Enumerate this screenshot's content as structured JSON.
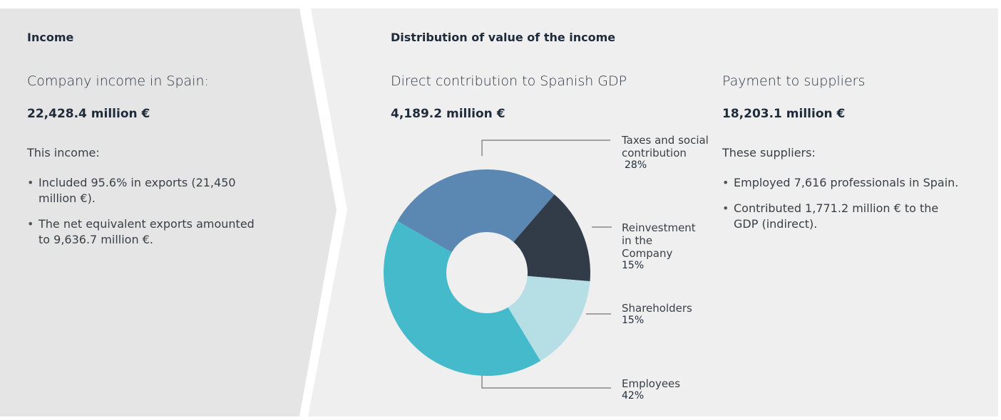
{
  "income": {
    "title": "Income",
    "subtitle": "Company income in Spain:",
    "amount": "22,428.4 million €",
    "intro": "This income:",
    "bullets": [
      "Included 95.6% in exports (21,450 million €).",
      "The net equivalent exports amounted to 9,636.7 million €."
    ]
  },
  "distribution": {
    "title": "Distribution of value of the income"
  },
  "gdp": {
    "subtitle": "Direct contribution to Spanish GDP",
    "amount": "4,189.2 million €"
  },
  "suppliers": {
    "subtitle": "Payment to suppliers",
    "amount": "18,203.1 million €",
    "intro": "These suppliers:",
    "bullets": [
      "Employed 7,616 professionals in Spain.",
      "Contributed 1,771.2 million € to the GDP (indirect)."
    ]
  },
  "chart_data": {
    "type": "donut",
    "categories": [
      "Taxes and social contribution",
      "Reinvestment in the Company",
      "Shareholders",
      "Employees"
    ],
    "values": [
      28,
      15,
      15,
      42
    ],
    "value_labels": [
      "28%",
      "15%",
      "15%",
      "42%"
    ],
    "colors": [
      "#5b87b3",
      "#323c48",
      "#b6dfe5",
      "#45bacb"
    ]
  }
}
